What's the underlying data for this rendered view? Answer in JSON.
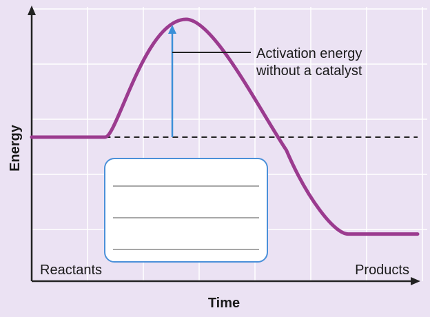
{
  "chart_data": {
    "type": "line",
    "xlabel": "Time",
    "ylabel": "Energy",
    "category_labels": {
      "start": "Reactants",
      "end": "Products"
    },
    "series": [
      {
        "name": "",
        "x": [
          0,
          0.19,
          0.4,
          0.66,
          0.82,
          1.0
        ],
        "y": [
          0.55,
          0.55,
          1.0,
          0.5,
          0.18,
          0.18
        ]
      }
    ],
    "reference_line": {
      "y": 0.55,
      "style": "dashed"
    },
    "annotations": [
      {
        "text": "Activation energy\nwithout a catalyst",
        "arrow_from_y": 0.55,
        "arrow_to_y": 1.0,
        "x": 0.4
      }
    ],
    "answer_box": {
      "lines": 3,
      "text": ""
    },
    "grid": true,
    "colors": {
      "curve": "#9b3b8f",
      "arrow": "#3b8fd8",
      "background": "#ebe2f3",
      "grid": "#ffffff",
      "box_border": "#4a90d9"
    }
  }
}
